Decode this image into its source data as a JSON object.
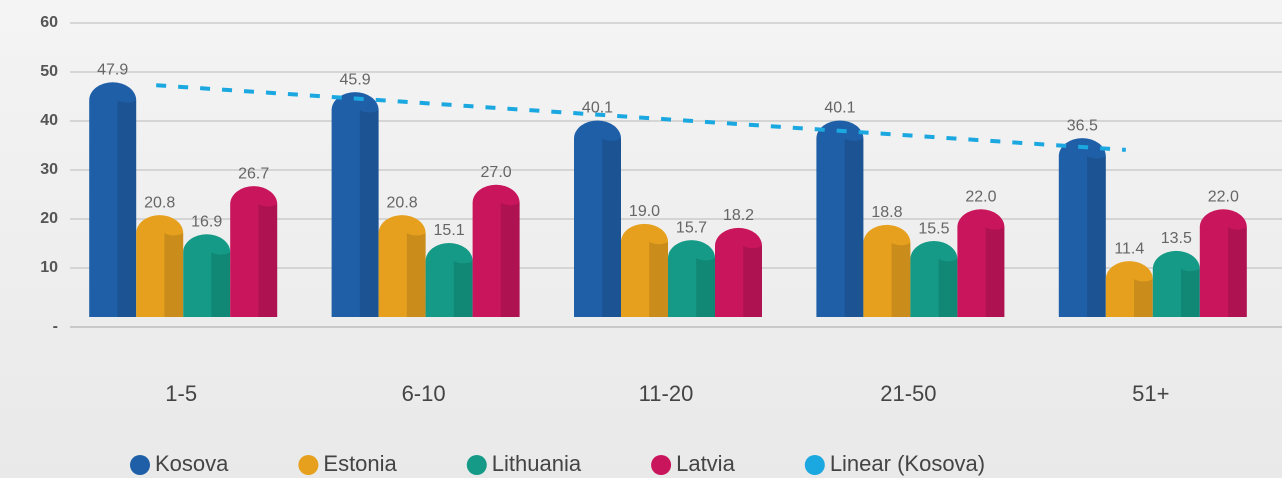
{
  "chart_data": {
    "type": "bar",
    "categories": [
      "1-5",
      "6-10",
      "11-20",
      "21-50",
      "51+"
    ],
    "series": [
      {
        "name": "Kosova",
        "color": "#1f5fa8",
        "values": [
          47.9,
          45.9,
          40.1,
          40.1,
          36.5
        ],
        "value_labels": [
          "47.9",
          "45.9",
          "40.1",
          "40.1",
          "36.5"
        ]
      },
      {
        "name": "Estonia",
        "color": "#e6a01e",
        "values": [
          20.8,
          20.8,
          19.0,
          18.8,
          11.4
        ],
        "value_labels": [
          "20.8",
          "20.8",
          "19.0",
          "18.8",
          "11.4"
        ]
      },
      {
        "name": "Lithuania",
        "color": "#149a86",
        "values": [
          16.9,
          15.1,
          15.7,
          15.5,
          13.5
        ],
        "value_labels": [
          "16.9",
          "15.1",
          "15.7",
          "15.5",
          "13.5"
        ]
      },
      {
        "name": "Latvia",
        "color": "#c8155c",
        "values": [
          26.7,
          27.0,
          18.2,
          22.0,
          22.0
        ],
        "value_labels": [
          "26.7",
          "27.0",
          "18.2",
          "22.0",
          "22.0"
        ]
      },
      {
        "name": "Linear (Kosova)",
        "color": "#1ba8e0",
        "type": "trendline",
        "values": [
          47.3,
          44.0,
          40.7,
          37.4,
          34.1
        ]
      }
    ],
    "ylim": [
      0,
      60
    ],
    "yticks": [
      {
        "value": 0,
        "label": "-"
      },
      10,
      20,
      30,
      40,
      50,
      60
    ],
    "grid": true,
    "legend": "bottom"
  }
}
